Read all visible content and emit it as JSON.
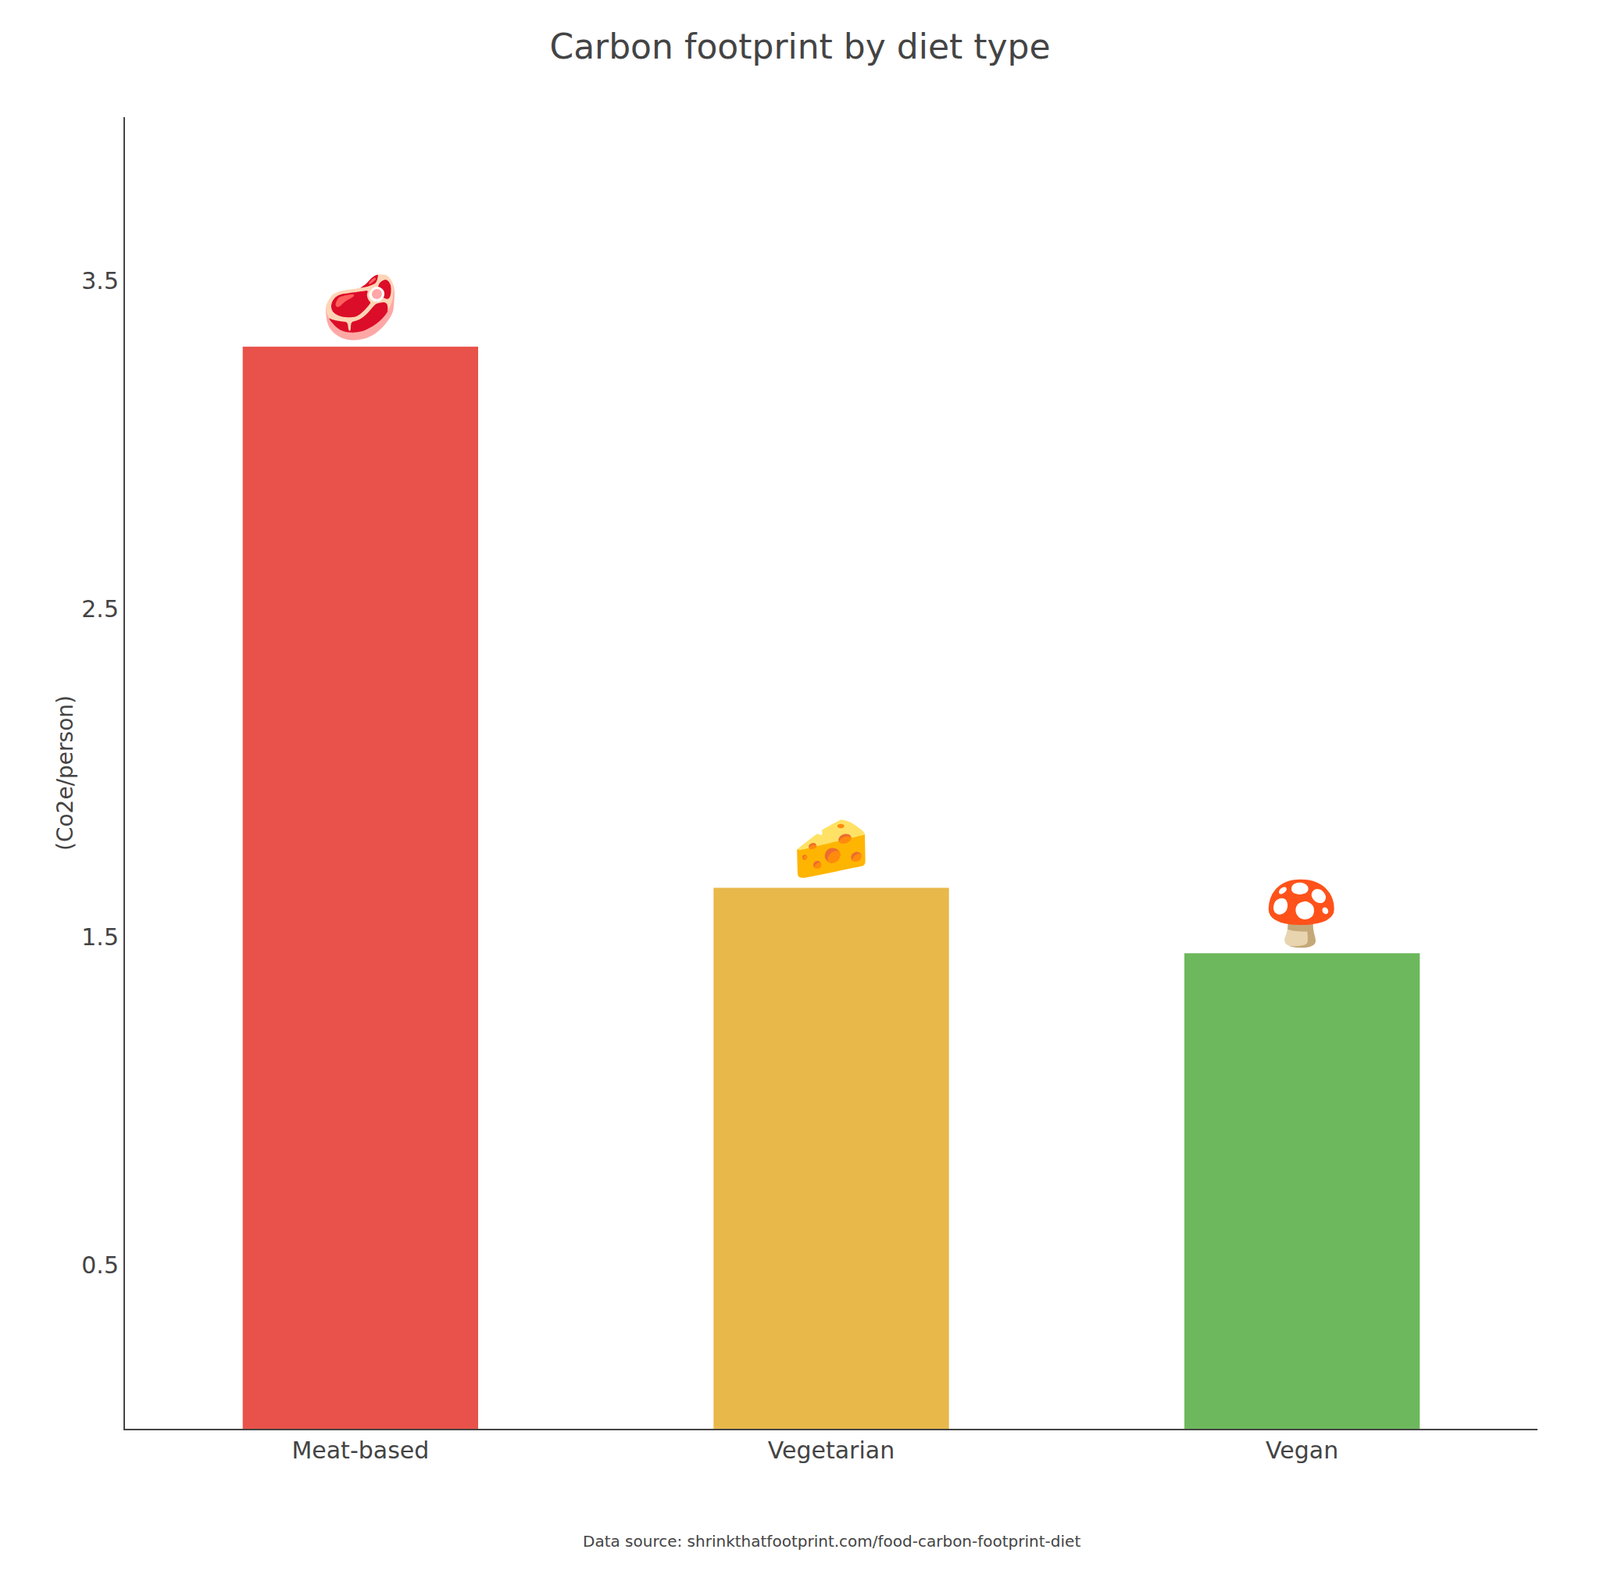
{
  "chart_data": {
    "type": "bar",
    "title": "Carbon footprint by diet type",
    "categories": [
      "Meat-based",
      "Vegetarian",
      "Vegan"
    ],
    "values": [
      3.3,
      1.65,
      1.45
    ],
    "colors": [
      "#E8524A",
      "#E8B84B",
      "#6DB85C"
    ],
    "ylabel": "(Co2e/person)",
    "ylim": [
      0,
      4.0
    ],
    "yticks": [
      0.5,
      1.5,
      2.5,
      3.5
    ],
    "grid": false,
    "annotations": [
      "🥩",
      "🧀",
      "🍄"
    ],
    "source": "Data source: shrinkthatfootprint.com/food-carbon-footprint-diet"
  }
}
